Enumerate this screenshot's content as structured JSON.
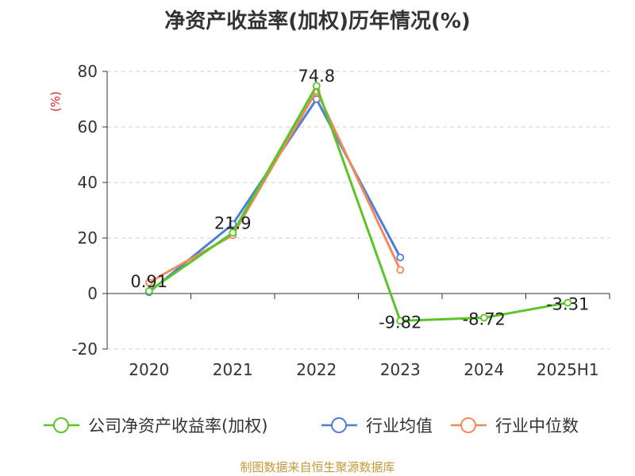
{
  "title": "净资产收益率(加权)历年情况(%)",
  "source": "制图数据来自恒生聚源数据库",
  "chart_data": {
    "type": "line",
    "title": "净资产收益率(加权)历年情况(%)",
    "ylabel": "(%)",
    "ylim": [
      -20,
      80
    ],
    "yticks": [
      -20,
      0,
      20,
      40,
      60,
      80
    ],
    "categories": [
      "2020",
      "2021",
      "2022",
      "2023",
      "2024",
      "2025H1"
    ],
    "series": [
      {
        "name": "公司净资产收益率(加权)",
        "color": "#5ac528",
        "values": [
          0.91,
          21.9,
          74.8,
          -9.82,
          -8.72,
          -3.31
        ],
        "labels": [
          "0.91",
          "21.9",
          "74.8",
          "-9.82",
          "-8.72",
          "-3.31"
        ]
      },
      {
        "name": "行业均值",
        "color": "#4e7fd6",
        "values": [
          0.5,
          25,
          70,
          13,
          null,
          null
        ]
      },
      {
        "name": "行业中位数",
        "color": "#f2895b",
        "values": [
          4,
          21,
          73,
          8.5,
          null,
          null
        ]
      }
    ],
    "grid": true,
    "legend_position": "bottom"
  }
}
